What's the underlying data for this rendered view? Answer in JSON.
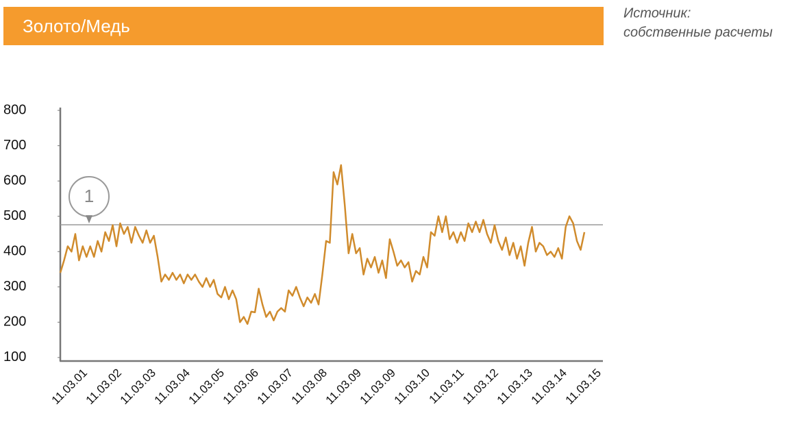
{
  "header": {
    "title": "Золото/Медь"
  },
  "source": [
    "Источник:",
    "собственные расчеты"
  ],
  "chart_data": {
    "type": "line",
    "color": "#d08b2c",
    "values": [
      340,
      375,
      415,
      400,
      450,
      375,
      415,
      385,
      415,
      385,
      430,
      400,
      455,
      430,
      475,
      415,
      480,
      450,
      470,
      425,
      470,
      445,
      425,
      460,
      425,
      445,
      385,
      315,
      335,
      320,
      340,
      320,
      335,
      310,
      335,
      320,
      335,
      315,
      300,
      325,
      300,
      320,
      280,
      270,
      300,
      265,
      290,
      265,
      200,
      215,
      195,
      230,
      228,
      295,
      250,
      215,
      230,
      205,
      230,
      240,
      230,
      290,
      275,
      300,
      270,
      245,
      270,
      255,
      280,
      250,
      335,
      430,
      425,
      625,
      590,
      645,
      530,
      395,
      450,
      395,
      410,
      335,
      380,
      355,
      385,
      340,
      375,
      325,
      435,
      400,
      360,
      375,
      355,
      370,
      315,
      345,
      335,
      385,
      355,
      455,
      445,
      500,
      455,
      500,
      435,
      455,
      425,
      455,
      430,
      480,
      455,
      485,
      455,
      490,
      450,
      425,
      475,
      430,
      405,
      440,
      390,
      425,
      380,
      415,
      360,
      425,
      470,
      400,
      425,
      415,
      390,
      400,
      385,
      410,
      380,
      470,
      500,
      480,
      430,
      405,
      455
    ],
    "ylim": [
      90,
      808
    ],
    "yticks": [
      100,
      200,
      300,
      400,
      500,
      600,
      700,
      800
    ],
    "xtick_labels": [
      "11.03.01",
      "11.03.02",
      "11.03.03",
      "11.03.04",
      "11.03.05",
      "11.03.06",
      "11.03.07",
      "11.03.08",
      "11.03.09",
      "11.03.09",
      "11.03.10",
      "11.03.11",
      "11.03.12",
      "11.03.13",
      "11.03.14",
      "11.03.15"
    ],
    "reference_line": 476,
    "reference_color": "#999999",
    "annotation": "1",
    "grid": false
  }
}
